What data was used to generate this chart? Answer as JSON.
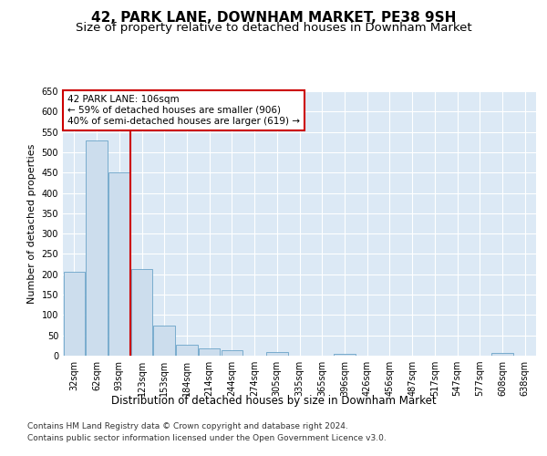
{
  "title": "42, PARK LANE, DOWNHAM MARKET, PE38 9SH",
  "subtitle": "Size of property relative to detached houses in Downham Market",
  "xlabel": "Distribution of detached houses by size in Downham Market",
  "ylabel": "Number of detached properties",
  "categories": [
    "32sqm",
    "62sqm",
    "93sqm",
    "123sqm",
    "153sqm",
    "184sqm",
    "214sqm",
    "244sqm",
    "274sqm",
    "305sqm",
    "335sqm",
    "365sqm",
    "396sqm",
    "426sqm",
    "456sqm",
    "487sqm",
    "517sqm",
    "547sqm",
    "577sqm",
    "608sqm",
    "638sqm"
  ],
  "values": [
    207,
    530,
    450,
    213,
    75,
    27,
    18,
    14,
    0,
    10,
    0,
    0,
    5,
    0,
    0,
    0,
    0,
    0,
    0,
    7,
    0
  ],
  "bar_color": "#ccdded",
  "bar_edge_color": "#6aa3c8",
  "background_color": "#dce9f5",
  "vline_x": 2.5,
  "vline_color": "#cc0000",
  "annotation_text": "42 PARK LANE: 106sqm\n← 59% of detached houses are smaller (906)\n40% of semi-detached houses are larger (619) →",
  "annotation_box_color": "#ffffff",
  "annotation_box_edge": "#cc0000",
  "ylim": [
    0,
    650
  ],
  "yticks": [
    0,
    50,
    100,
    150,
    200,
    250,
    300,
    350,
    400,
    450,
    500,
    550,
    600,
    650
  ],
  "footer_line1": "Contains HM Land Registry data © Crown copyright and database right 2024.",
  "footer_line2": "Contains public sector information licensed under the Open Government Licence v3.0.",
  "title_fontsize": 11,
  "subtitle_fontsize": 9.5,
  "ylabel_fontsize": 8,
  "xlabel_fontsize": 8.5,
  "tick_fontsize": 7,
  "annotation_fontsize": 7.5,
  "footer_fontsize": 6.5
}
